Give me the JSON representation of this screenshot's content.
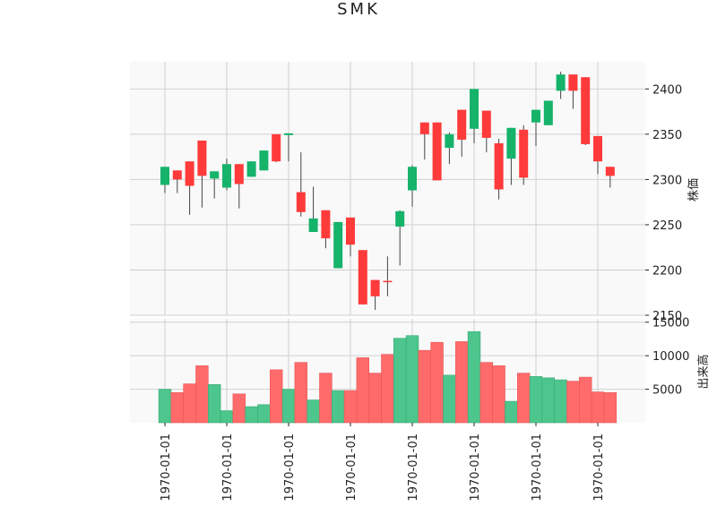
{
  "chart_data": {
    "type": "candlestick",
    "title": "SMK",
    "colors": {
      "up": "#16b36b",
      "down": "#ff3a3a",
      "up_volume": "#4cc68c",
      "down_volume": "#ff6b6b",
      "grid": "#d0d0d0",
      "panel_bg": "#f9f9f9",
      "wick": "#444444"
    },
    "price_axis": {
      "label": "株価",
      "ylim": [
        2150,
        2430
      ],
      "ticks": [
        2150,
        2200,
        2250,
        2300,
        2350,
        2400
      ]
    },
    "volume_axis": {
      "label": "出来高",
      "ylim": [
        0,
        15500
      ],
      "ticks": [
        5000,
        10000,
        15000
      ]
    },
    "x_tick_labels": [
      {
        "index": 0,
        "label": "1970-01-01"
      },
      {
        "index": 5,
        "label": "1970-01-01"
      },
      {
        "index": 10,
        "label": "1970-01-01"
      },
      {
        "index": 15,
        "label": "1970-01-01"
      },
      {
        "index": 20,
        "label": "1970-01-01"
      },
      {
        "index": 25,
        "label": "1970-01-01"
      },
      {
        "index": 30,
        "label": "1970-01-01"
      },
      {
        "index": 35,
        "label": "1970-01-01"
      }
    ],
    "candles": [
      {
        "open": 2294,
        "high": 2314,
        "low": 2285,
        "close": 2314,
        "volume": 5000
      },
      {
        "open": 2310,
        "high": 2310,
        "low": 2285,
        "close": 2300,
        "volume": 4500
      },
      {
        "open": 2320,
        "high": 2320,
        "low": 2261,
        "close": 2293,
        "volume": 5800
      },
      {
        "open": 2343,
        "high": 2343,
        "low": 2269,
        "close": 2304,
        "volume": 8500
      },
      {
        "open": 2301,
        "high": 2309,
        "low": 2279,
        "close": 2309,
        "volume": 5700
      },
      {
        "open": 2291,
        "high": 2323,
        "low": 2288,
        "close": 2317,
        "volume": 1800
      },
      {
        "open": 2317,
        "high": 2317,
        "low": 2268,
        "close": 2295,
        "volume": 4300
      },
      {
        "open": 2303,
        "high": 2320,
        "low": 2303,
        "close": 2320,
        "volume": 2400
      },
      {
        "open": 2310,
        "high": 2332,
        "low": 2310,
        "close": 2332,
        "volume": 2700
      },
      {
        "open": 2350,
        "high": 2350,
        "low": 2319,
        "close": 2320,
        "volume": 7900
      },
      {
        "open": 2349,
        "high": 2351,
        "low": 2320,
        "close": 2351,
        "volume": 5000
      },
      {
        "open": 2286,
        "high": 2330,
        "low": 2259,
        "close": 2264,
        "volume": 9000
      },
      {
        "open": 2242,
        "high": 2292,
        "low": 2242,
        "close": 2257,
        "volume": 3400
      },
      {
        "open": 2266,
        "high": 2266,
        "low": 2224,
        "close": 2235,
        "volume": 7400
      },
      {
        "open": 2202,
        "high": 2253,
        "low": 2202,
        "close": 2253,
        "volume": 4800
      },
      {
        "open": 2258,
        "high": 2258,
        "low": 2215,
        "close": 2228,
        "volume": 4800
      },
      {
        "open": 2222,
        "high": 2222,
        "low": 2162,
        "close": 2162,
        "volume": 9700
      },
      {
        "open": 2189,
        "high": 2189,
        "low": 2156,
        "close": 2171,
        "volume": 7400
      },
      {
        "open": 2188,
        "high": 2215,
        "low": 2171,
        "close": 2187,
        "volume": 10200
      },
      {
        "open": 2248,
        "high": 2266,
        "low": 2205,
        "close": 2265,
        "volume": 12600
      },
      {
        "open": 2288,
        "high": 2316,
        "low": 2270,
        "close": 2314,
        "volume": 13000
      },
      {
        "open": 2363,
        "high": 2363,
        "low": 2322,
        "close": 2350,
        "volume": 10800
      },
      {
        "open": 2363,
        "high": 2363,
        "low": 2299,
        "close": 2299,
        "volume": 12000
      },
      {
        "open": 2335,
        "high": 2352,
        "low": 2317,
        "close": 2350,
        "volume": 7100
      },
      {
        "open": 2377,
        "high": 2377,
        "low": 2325,
        "close": 2344,
        "volume": 12100
      },
      {
        "open": 2356,
        "high": 2400,
        "low": 2340,
        "close": 2400,
        "volume": 13600
      },
      {
        "open": 2376,
        "high": 2376,
        "low": 2330,
        "close": 2346,
        "volume": 9000
      },
      {
        "open": 2340,
        "high": 2345,
        "low": 2278,
        "close": 2289,
        "volume": 8500
      },
      {
        "open": 2323,
        "high": 2357,
        "low": 2294,
        "close": 2357,
        "volume": 3200
      },
      {
        "open": 2355,
        "high": 2360,
        "low": 2294,
        "close": 2302,
        "volume": 7400
      },
      {
        "open": 2363,
        "high": 2377,
        "low": 2337,
        "close": 2377,
        "volume": 6900
      },
      {
        "open": 2360,
        "high": 2387,
        "low": 2360,
        "close": 2387,
        "volume": 6700
      },
      {
        "open": 2398,
        "high": 2419,
        "low": 2389,
        "close": 2416,
        "volume": 6400
      },
      {
        "open": 2416,
        "high": 2416,
        "low": 2378,
        "close": 2398,
        "volume": 6200
      },
      {
        "open": 2413,
        "high": 2413,
        "low": 2338,
        "close": 2339,
        "volume": 6800
      },
      {
        "open": 2348,
        "high": 2348,
        "low": 2306,
        "close": 2320,
        "volume": 4600
      },
      {
        "open": 2314,
        "high": 2314,
        "low": 2291,
        "close": 2304,
        "volume": 4500
      }
    ]
  }
}
